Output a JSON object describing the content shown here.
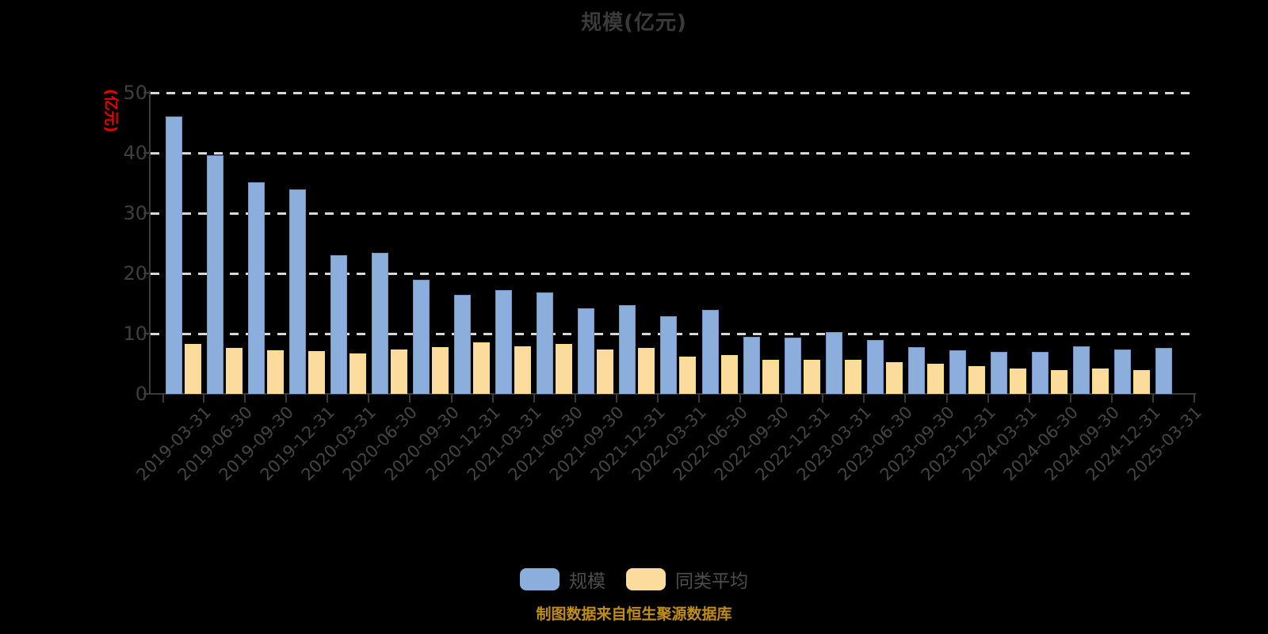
{
  "title": "规模(亿元)",
  "y_axis": {
    "unit_label": "(亿元)",
    "unit_color": "#e80000"
  },
  "colors": {
    "background": "#000000",
    "title_text": "#3a3a3a",
    "axis": "#3a3a3a",
    "gridline": "#d8d8d8",
    "scale_bar": "#8CAEDC",
    "scale_bar_border": "#7295C8",
    "average_bar": "#FBDC9C",
    "average_bar_border": "#F5E27A",
    "caption_text": "#C18E10"
  },
  "legend": [
    {
      "label": "规模",
      "color": "#8CAEDC"
    },
    {
      "label": "同类平均",
      "color": "#FBDC9C"
    }
  ],
  "footer": {
    "caption": "制图数据来自恒生聚源数据库"
  },
  "chart_data": {
    "type": "bar",
    "title": "规模(亿元)",
    "ylabel": "(亿元)",
    "ylim": [
      0,
      50
    ],
    "yticks": [
      0,
      10,
      20,
      30,
      40,
      50
    ],
    "grid": "horizontal dashed",
    "legend_position": "bottom",
    "categories": [
      "2019-03-31",
      "2019-06-30",
      "2019-09-30",
      "2019-12-31",
      "2020-03-31",
      "2020-06-30",
      "2020-09-30",
      "2020-12-31",
      "2021-03-31",
      "2021-06-30",
      "2021-09-30",
      "2021-12-31",
      "2022-03-31",
      "2022-06-30",
      "2022-09-30",
      "2022-12-31",
      "2023-03-31",
      "2023-06-30",
      "2023-09-30",
      "2023-12-31",
      "2024-03-31",
      "2024-06-30",
      "2024-09-30",
      "2024-12-31",
      "2025-03-31"
    ],
    "series": [
      {
        "name": "规模",
        "color": "#8CAEDC",
        "values": [
          46.0,
          39.6,
          35.1,
          34.0,
          23.0,
          23.4,
          18.9,
          16.5,
          17.2,
          16.8,
          14.2,
          14.8,
          12.9,
          14.0,
          9.5,
          9.4,
          10.2,
          9.0,
          7.7,
          7.3,
          7.0,
          7.0,
          7.9,
          7.4,
          7.6
        ]
      },
      {
        "name": "同类平均",
        "color": "#FBDC9C",
        "values": [
          8.3,
          7.6,
          7.2,
          7.1,
          6.7,
          7.4,
          7.7,
          8.6,
          7.9,
          8.3,
          7.4,
          7.6,
          6.2,
          6.5,
          5.7,
          5.7,
          5.6,
          5.2,
          5.0,
          4.6,
          4.2,
          4.0,
          4.2,
          3.9,
          null
        ]
      }
    ],
    "source_note": "制图数据来自恒生聚源数据库"
  }
}
